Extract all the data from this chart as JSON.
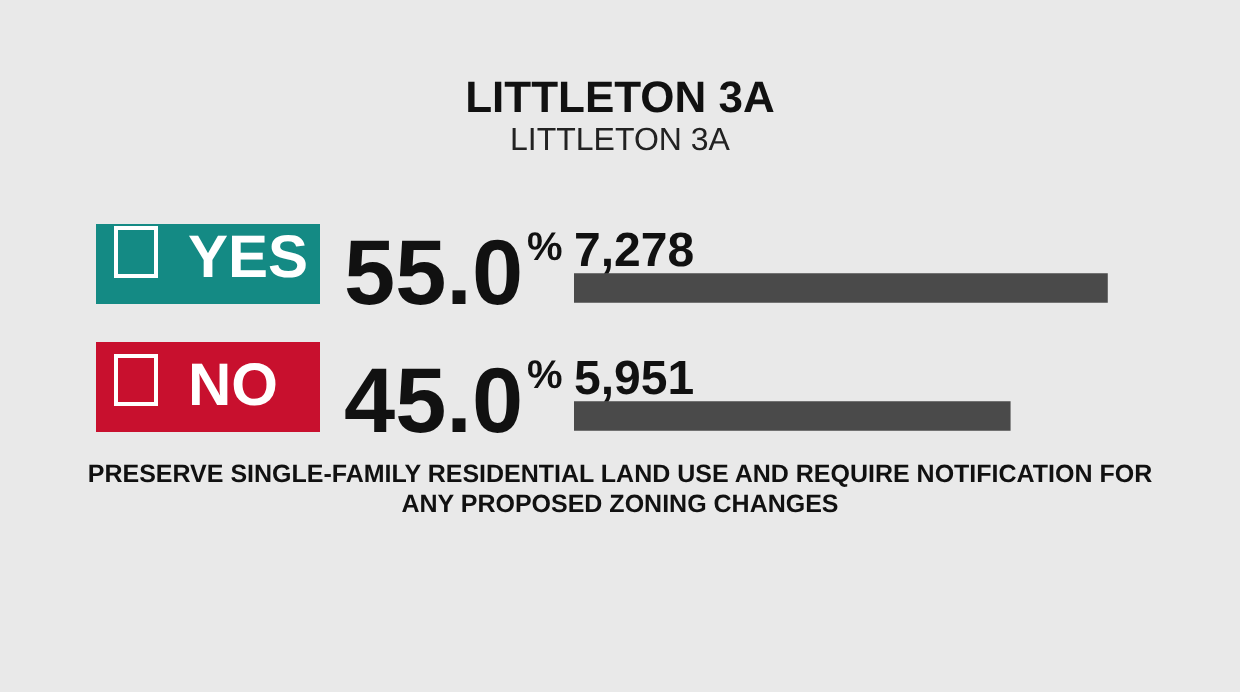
{
  "chart_data": {
    "type": "bar",
    "orientation": "horizontal",
    "title": "LITTLETON 3A",
    "subtitle": "LITTLETON 3A",
    "categories": [
      "YES",
      "NO"
    ],
    "series": [
      {
        "color": "#4a4a4a",
        "values": [
          7278,
          5951
        ],
        "value_labels": [
          "7,278",
          "5,951"
        ]
      }
    ],
    "annotations": [
      "55.0%",
      "45.0%",
      "PRESERVE SINGLE-FAMILY RESIDENTIAL LAND USE AND REQUIRE NOTIFICATION FOR ANY PROPOSED ZONING CHANGES"
    ],
    "legend": false
  }
}
